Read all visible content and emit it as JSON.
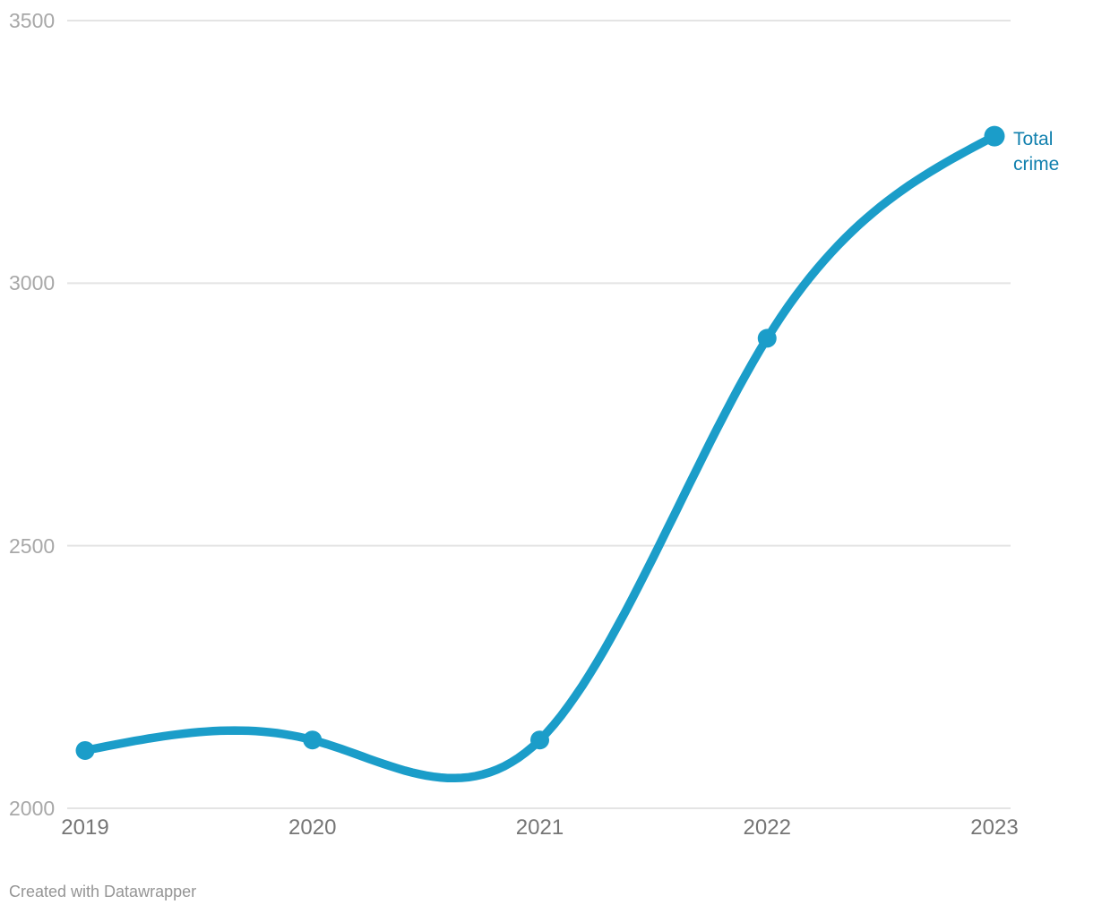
{
  "chart_data": {
    "type": "line",
    "title": "",
    "xlabel": "",
    "ylabel": "",
    "x": [
      "2019",
      "2020",
      "2021",
      "2022",
      "2023"
    ],
    "series": [
      {
        "name": "Total crime",
        "values": [
          2110,
          2130,
          2130,
          2895,
          3280
        ]
      }
    ],
    "y_ticks": [
      2000,
      2500,
      3000,
      3500
    ],
    "ylim": [
      2000,
      3500
    ],
    "curve": "natural",
    "grid": "horizontal",
    "legend_position": "end-of-line-label",
    "line_color": "#1b9dc9",
    "point_color": "#1b9dc9",
    "label_color": "#1180ae",
    "grid_color": "#e4e4e4",
    "y_tick_color": "#a8a8a8",
    "x_tick_color": "#757575"
  },
  "footer": {
    "attribution": "Created with Datawrapper"
  }
}
